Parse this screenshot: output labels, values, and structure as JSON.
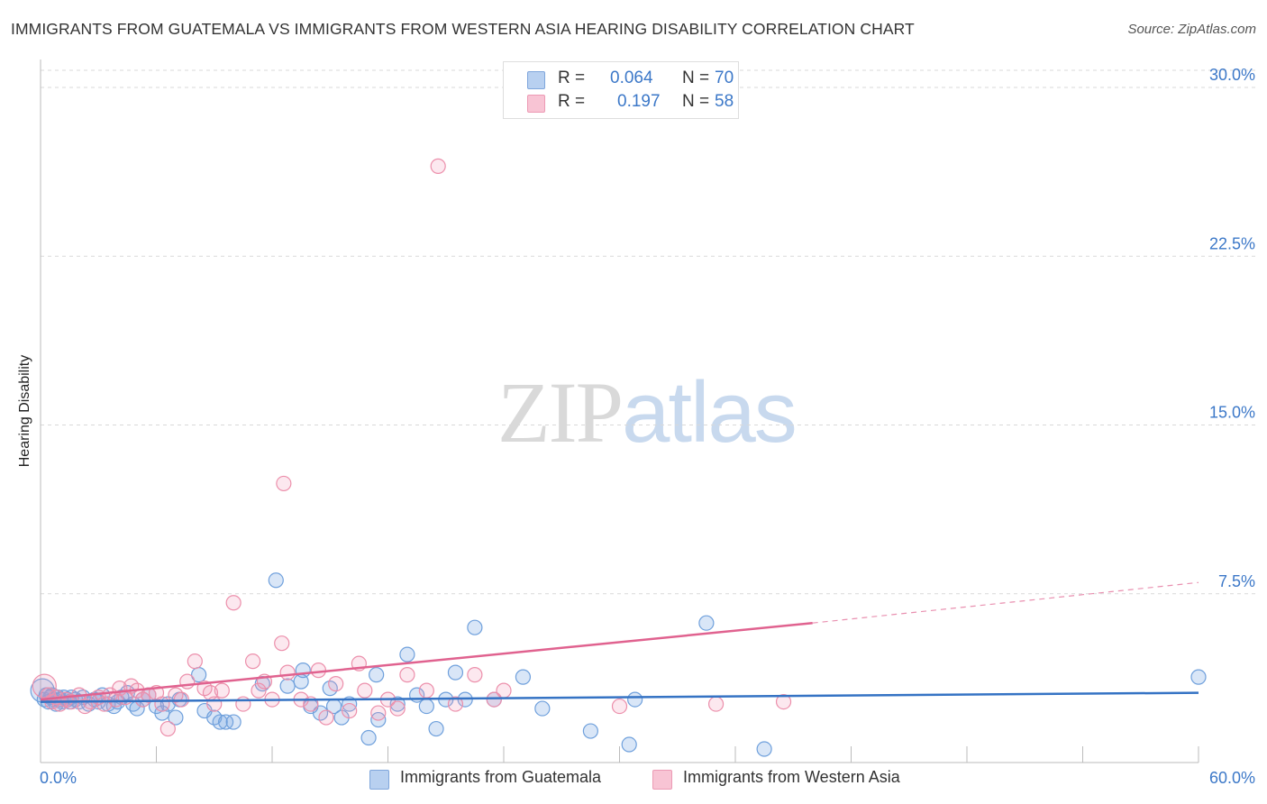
{
  "header": {
    "title": "IMMIGRANTS FROM GUATEMALA VS IMMIGRANTS FROM WESTERN ASIA HEARING DISABILITY CORRELATION CHART",
    "source": "Source: ZipAtlas.com"
  },
  "watermark": {
    "zip": "ZIP",
    "atlas": "atlas"
  },
  "colors": {
    "blue": "#6fa0dc",
    "blue_fill": "rgba(120,165,225,0.28)",
    "blue_line": "#3573c4",
    "pink": "#ec8fab",
    "pink_fill": "rgba(240,150,180,0.22)",
    "pink_line": "#e0628f",
    "tick_text": "#3c78c8",
    "grid": "#d9d9d9"
  },
  "legend": {
    "rows": [
      {
        "r_label": "R =",
        "r_value": "0.064",
        "n_label": "N =",
        "n_value": "70",
        "color": "#b8d0f0",
        "border": "#7fa6dc"
      },
      {
        "r_label": "R =",
        "r_value": "0.197",
        "n_label": "N =",
        "n_value": "58",
        "color": "#f8c4d4",
        "border": "#ec9ab4"
      }
    ]
  },
  "chart_data": {
    "type": "scatter",
    "title": "IMMIGRANTS FROM GUATEMALA VS IMMIGRANTS FROM WESTERN ASIA HEARING DISABILITY CORRELATION CHART",
    "xlabel": "",
    "ylabel": "Hearing Disability",
    "xlim": [
      0,
      60
    ],
    "ylim": [
      0,
      31.5
    ],
    "x_tick_labels": [
      "0.0%",
      "60.0%"
    ],
    "y_ticks": [
      7.5,
      15.0,
      22.5,
      30.0
    ],
    "y_tick_labels": [
      "7.5%",
      "15.0%",
      "22.5%",
      "30.0%"
    ],
    "grid": "horizontal dashed",
    "legend_position": "top-center",
    "series": [
      {
        "name": "Immigrants from Guatemala",
        "color": "#6fa0dc",
        "r": 0.064,
        "n": 70,
        "trend": {
          "x": [
            0,
            60
          ],
          "y": [
            2.7,
            3.1
          ]
        },
        "points": [
          [
            0.1,
            3.2
          ],
          [
            0.2,
            2.8
          ],
          [
            0.3,
            3.0
          ],
          [
            0.4,
            2.7
          ],
          [
            0.5,
            2.9
          ],
          [
            0.6,
            3.0
          ],
          [
            0.7,
            2.8
          ],
          [
            0.8,
            2.6
          ],
          [
            0.9,
            2.9
          ],
          [
            1.0,
            2.8
          ],
          [
            1.1,
            2.7
          ],
          [
            1.2,
            2.9
          ],
          [
            1.4,
            2.8
          ],
          [
            1.5,
            2.7
          ],
          [
            1.6,
            2.9
          ],
          [
            1.8,
            2.8
          ],
          [
            2.0,
            2.7
          ],
          [
            2.2,
            2.9
          ],
          [
            2.5,
            2.6
          ],
          [
            2.8,
            2.8
          ],
          [
            3.0,
            2.7
          ],
          [
            3.2,
            3.0
          ],
          [
            3.5,
            2.6
          ],
          [
            3.8,
            2.5
          ],
          [
            4.0,
            2.7
          ],
          [
            4.2,
            2.9
          ],
          [
            4.5,
            3.1
          ],
          [
            4.8,
            2.6
          ],
          [
            5.0,
            2.4
          ],
          [
            5.3,
            2.8
          ],
          [
            5.6,
            3.0
          ],
          [
            6.0,
            2.5
          ],
          [
            6.3,
            2.2
          ],
          [
            6.6,
            2.6
          ],
          [
            7.0,
            2.0
          ],
          [
            7.2,
            2.8
          ],
          [
            8.2,
            3.9
          ],
          [
            8.5,
            2.3
          ],
          [
            9.0,
            2.0
          ],
          [
            9.3,
            1.8
          ],
          [
            9.6,
            1.8
          ],
          [
            10.0,
            1.8
          ],
          [
            11.5,
            3.5
          ],
          [
            12.2,
            8.1
          ],
          [
            12.8,
            3.4
          ],
          [
            13.5,
            3.6
          ],
          [
            13.6,
            4.1
          ],
          [
            14.0,
            2.5
          ],
          [
            14.5,
            2.2
          ],
          [
            15.0,
            3.3
          ],
          [
            15.2,
            2.5
          ],
          [
            15.6,
            2.0
          ],
          [
            16.0,
            2.6
          ],
          [
            17.0,
            1.1
          ],
          [
            17.4,
            3.9
          ],
          [
            17.5,
            1.9
          ],
          [
            18.5,
            2.6
          ],
          [
            19.0,
            4.8
          ],
          [
            19.5,
            3.0
          ],
          [
            20.0,
            2.5
          ],
          [
            20.5,
            1.5
          ],
          [
            21.0,
            2.8
          ],
          [
            21.5,
            4.0
          ],
          [
            22.0,
            2.8
          ],
          [
            22.5,
            6.0
          ],
          [
            23.5,
            2.8
          ],
          [
            25.0,
            3.8
          ],
          [
            26.0,
            2.4
          ],
          [
            28.5,
            1.4
          ],
          [
            30.5,
            0.8
          ],
          [
            30.8,
            2.8
          ],
          [
            34.5,
            6.2
          ],
          [
            37.5,
            0.6
          ],
          [
            60.0,
            3.8
          ]
        ]
      },
      {
        "name": "Immigrants from Western Asia",
        "color": "#ec8fab",
        "r": 0.197,
        "n": 58,
        "trend": {
          "x": [
            0,
            40
          ],
          "y": [
            2.8,
            6.2
          ]
        },
        "trend_extension": {
          "x": [
            40,
            60
          ],
          "y": [
            6.2,
            8.0
          ]
        },
        "points": [
          [
            0.2,
            3.4
          ],
          [
            0.4,
            3.0
          ],
          [
            0.6,
            2.7
          ],
          [
            0.8,
            2.9
          ],
          [
            1.0,
            2.6
          ],
          [
            1.3,
            2.8
          ],
          [
            1.6,
            2.7
          ],
          [
            2.0,
            3.0
          ],
          [
            2.3,
            2.5
          ],
          [
            2.6,
            2.7
          ],
          [
            3.0,
            2.9
          ],
          [
            3.3,
            2.6
          ],
          [
            3.6,
            3.0
          ],
          [
            3.9,
            2.8
          ],
          [
            4.1,
            3.3
          ],
          [
            4.4,
            2.9
          ],
          [
            4.7,
            3.4
          ],
          [
            5.0,
            3.2
          ],
          [
            5.3,
            2.8
          ],
          [
            5.6,
            3.0
          ],
          [
            6.0,
            3.1
          ],
          [
            6.3,
            2.6
          ],
          [
            6.6,
            1.5
          ],
          [
            7.0,
            3.0
          ],
          [
            7.3,
            2.8
          ],
          [
            7.6,
            3.6
          ],
          [
            8.0,
            4.5
          ],
          [
            8.5,
            3.3
          ],
          [
            8.8,
            3.1
          ],
          [
            9.0,
            2.6
          ],
          [
            9.4,
            3.2
          ],
          [
            10.0,
            7.1
          ],
          [
            10.5,
            2.6
          ],
          [
            11.0,
            4.5
          ],
          [
            11.3,
            3.2
          ],
          [
            11.6,
            3.6
          ],
          [
            12.0,
            2.8
          ],
          [
            12.5,
            5.3
          ],
          [
            12.8,
            4.0
          ],
          [
            12.6,
            12.4
          ],
          [
            13.5,
            2.8
          ],
          [
            14.0,
            2.6
          ],
          [
            14.4,
            4.1
          ],
          [
            14.8,
            2.0
          ],
          [
            15.3,
            3.5
          ],
          [
            16.0,
            2.3
          ],
          [
            16.5,
            4.4
          ],
          [
            16.8,
            3.2
          ],
          [
            17.5,
            2.2
          ],
          [
            18.0,
            2.8
          ],
          [
            18.5,
            2.4
          ],
          [
            19.0,
            3.9
          ],
          [
            20.0,
            3.2
          ],
          [
            20.6,
            26.5
          ],
          [
            21.5,
            2.6
          ],
          [
            22.5,
            3.9
          ],
          [
            23.5,
            2.8
          ],
          [
            24.0,
            3.2
          ],
          [
            30.0,
            2.5
          ],
          [
            35.0,
            2.6
          ],
          [
            38.5,
            2.7
          ]
        ]
      }
    ]
  }
}
